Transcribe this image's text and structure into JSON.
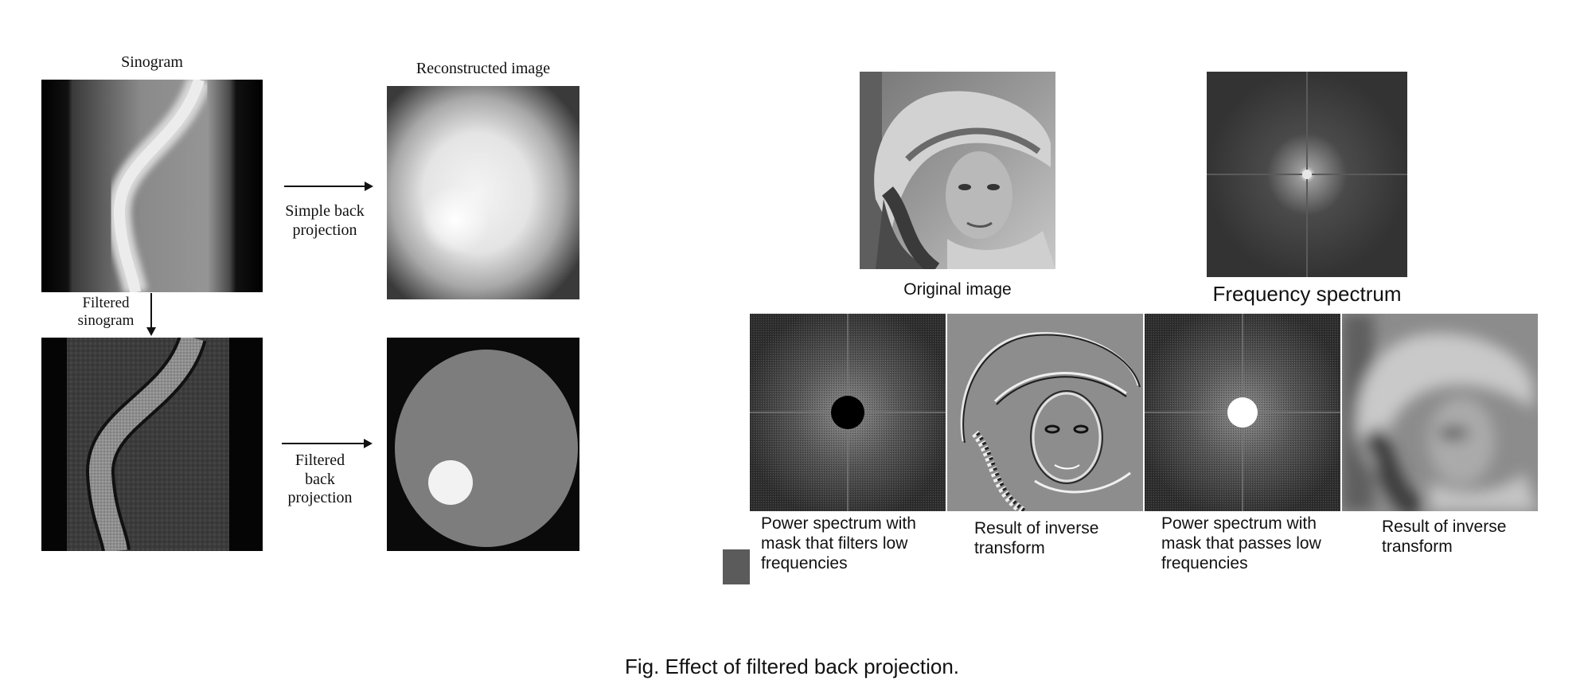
{
  "left_figure": {
    "sinogram_label": "Sinogram",
    "reconstructed_label": "Reconstructed image",
    "simple_bp_label_line1": "Simple back",
    "simple_bp_label_line2": "projection",
    "filtered_sinogram_line1": "Filtered",
    "filtered_sinogram_line2": "sinogram",
    "filtered_bp_line1": "Filtered",
    "filtered_bp_line2": "back",
    "filtered_bp_line3": "projection"
  },
  "right_figure": {
    "original_label": "Original image",
    "spectrum_label": "Frequency spectrum",
    "highpass_mask_line1": "Power spectrum with",
    "highpass_mask_line2": "mask that filters low",
    "highpass_mask_line3": "frequencies",
    "highpass_result_line1": "Result of inverse",
    "highpass_result_line2": "transform",
    "lowpass_mask_line1": "Power spectrum with",
    "lowpass_mask_line2": "mask that passes low",
    "lowpass_mask_line3": "frequencies",
    "lowpass_result_line1": "Result of inverse",
    "lowpass_result_line2": "transform"
  },
  "caption": "Fig. Effect of filtered back projection.",
  "colors": {
    "background": "#ffffff",
    "text": "#111111",
    "swatch": "#5b5b5b"
  }
}
